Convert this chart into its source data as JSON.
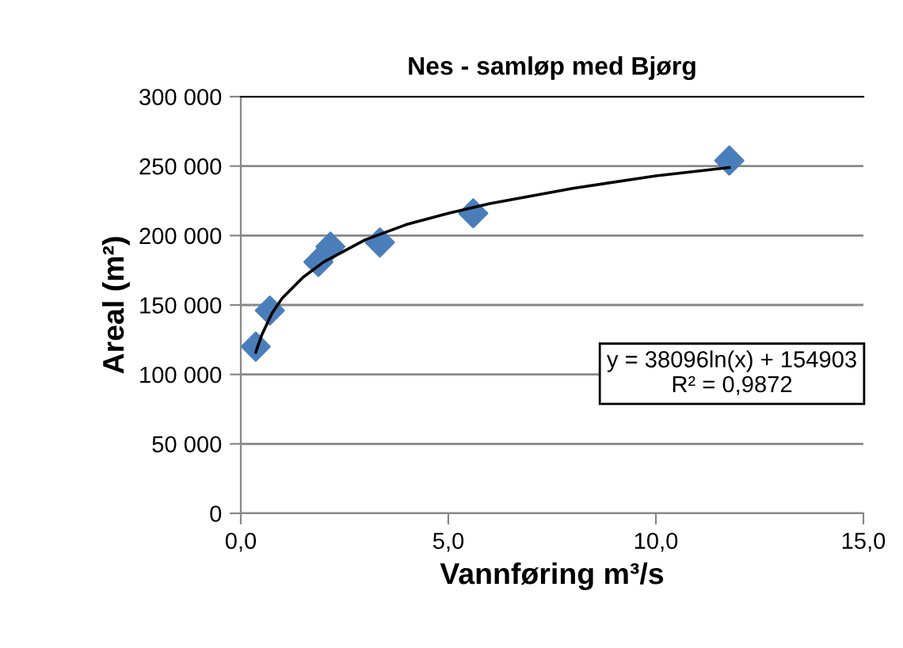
{
  "chart_data": {
    "type": "scatter",
    "title": "Nes - samløp med Bjørg",
    "xlabel": "Vannføring m³/s",
    "ylabel": "Areal (m²)",
    "series": [
      {
        "color": "#4a7ebb",
        "marker": "diamond",
        "x": [
          0.36,
          0.7,
          1.87,
          2.16,
          3.35,
          5.6,
          11.77
        ],
        "values": [
          120000,
          146000,
          181000,
          192000,
          195000,
          216000,
          254000
        ]
      },
      {
        "type": "line",
        "color": "#000000",
        "marker": "none",
        "line_style": "solid",
        "x": [
          0.36,
          0.5,
          0.75,
          1,
          1.5,
          2,
          3,
          4,
          5,
          6,
          8,
          10,
          11.77
        ],
        "values": [
          116000,
          128000,
          144000,
          155000,
          170000,
          181000,
          197000,
          208000,
          216000,
          223000,
          234000,
          243000,
          249000
        ]
      }
    ],
    "annotations": [
      "y = 38096ln(x) + 154903\nR² = 0,9872"
    ],
    "xlim": [
      0,
      15
    ],
    "xticks": [
      {
        "value": 0,
        "label": "0,0"
      },
      {
        "value": 5,
        "label": "5,0"
      },
      {
        "value": 10,
        "label": "10,0"
      },
      {
        "value": 15,
        "label": "15,0"
      }
    ],
    "ylim": [
      0,
      300000
    ],
    "yticks": [
      {
        "value": 0,
        "label": "0"
      },
      {
        "value": 50000,
        "label": "50 000"
      },
      {
        "value": 100000,
        "label": "100 000"
      },
      {
        "value": 150000,
        "label": "150 000"
      },
      {
        "value": 200000,
        "label": "200 000"
      },
      {
        "value": 250000,
        "label": "250 000"
      },
      {
        "value": 300000,
        "label": "300 000"
      }
    ],
    "grid": "y",
    "legend": false
  }
}
